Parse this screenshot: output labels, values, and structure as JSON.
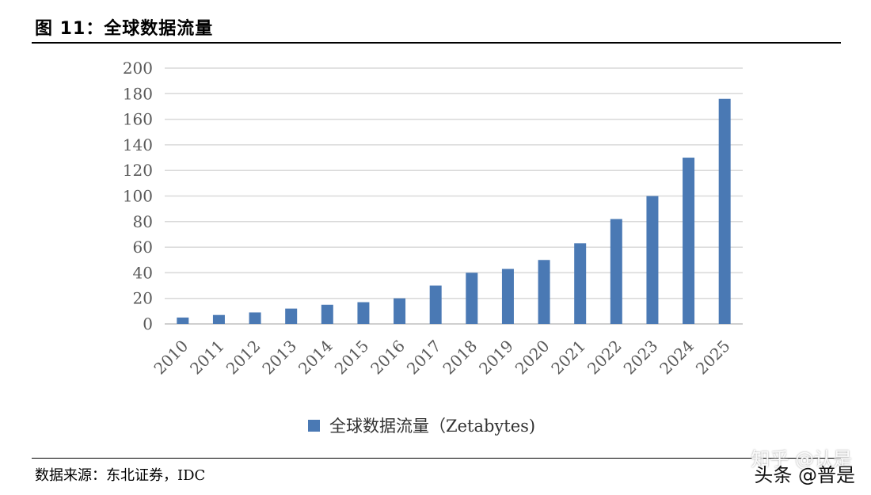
{
  "figure": {
    "title": "图 11：全球数据流量",
    "source": "数据来源：东北证券，IDC"
  },
  "watermarks": {
    "zhihu": "知乎 @认是",
    "toutiao": "头条 @普是"
  },
  "colors": {
    "bar": "#4a79b4",
    "grid": "#d9d9d9",
    "axis": "#bfbfbf"
  },
  "chart_data": {
    "type": "bar",
    "title": "",
    "xlabel": "",
    "ylabel": "",
    "ylim": [
      0,
      200
    ],
    "yticks": [
      0,
      20,
      40,
      60,
      80,
      100,
      120,
      140,
      160,
      180,
      200
    ],
    "grid": true,
    "legend_position": "bottom",
    "categories": [
      "2010",
      "2011",
      "2012",
      "2013",
      "2014",
      "2015",
      "2016",
      "2017",
      "2018",
      "2019",
      "2020",
      "2021",
      "2022",
      "2023",
      "2024",
      "2025"
    ],
    "series": [
      {
        "name": "全球数据流量（Zetabytes)",
        "values": [
          5,
          7,
          9,
          12,
          15,
          17,
          20,
          30,
          40,
          43,
          50,
          63,
          82,
          100,
          130,
          176
        ]
      }
    ]
  }
}
